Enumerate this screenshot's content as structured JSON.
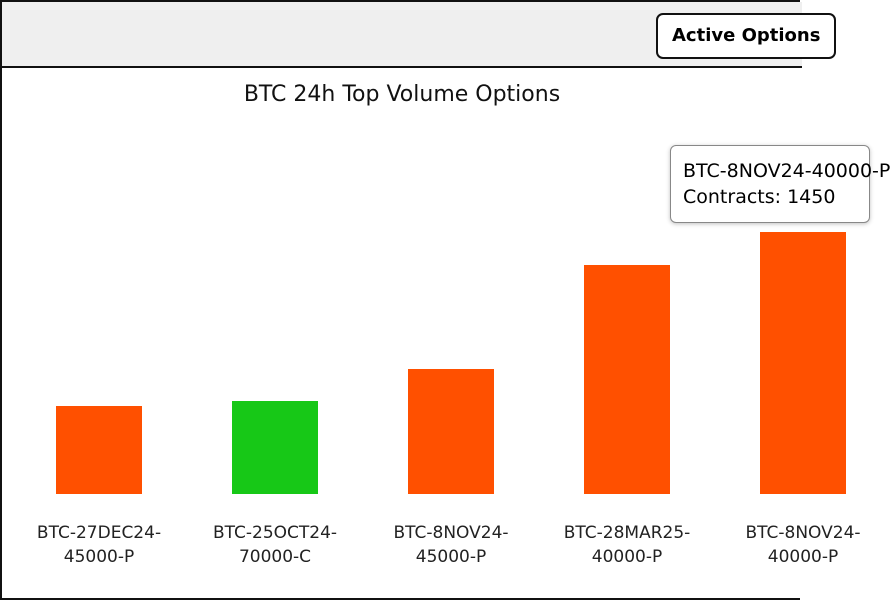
{
  "header": {
    "button": "Active Options"
  },
  "chart_data": {
    "type": "bar",
    "title": "BTC 24h Top Volume Options",
    "categories": [
      "BTC-27DEC24-45000-P",
      "BTC-25OCT24-70000-C",
      "BTC-8NOV24-45000-P",
      "BTC-28MAR25-40000-P",
      "BTC-8NOV24-40000-P"
    ],
    "values": [
      487,
      515,
      692,
      1267,
      1450
    ],
    "colors": [
      "#ff5000",
      "#17c817",
      "#ff5000",
      "#ff5000",
      "#ff5000"
    ],
    "tooltip": {
      "title": "BTC-8NOV24-40000-P",
      "text": "Contracts: 1450"
    }
  }
}
